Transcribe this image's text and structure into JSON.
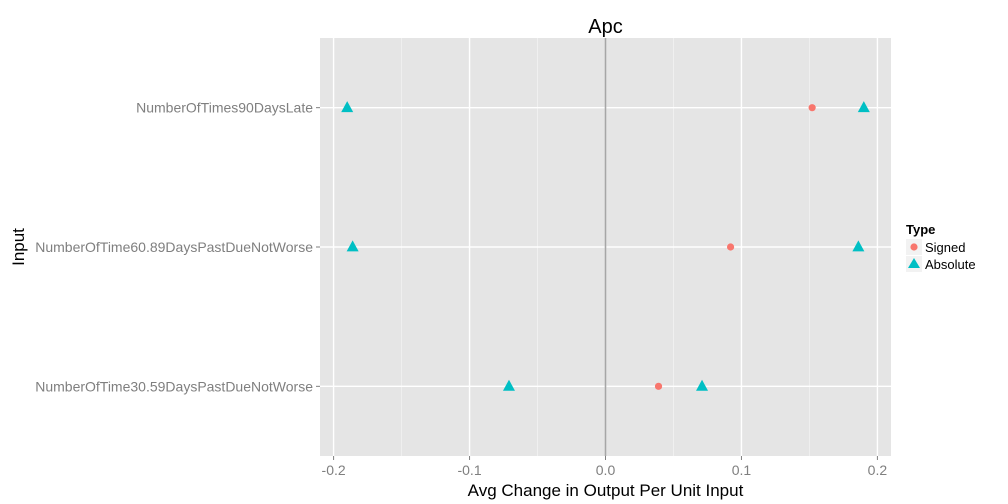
{
  "chart_data": {
    "type": "scatter",
    "title": "Apc",
    "xlabel": "Avg Change in Output Per Unit Input",
    "ylabel": "Input",
    "xlim": [
      -0.21,
      0.21
    ],
    "x_ticks": [
      -0.2,
      -0.1,
      0.0,
      0.1,
      0.2
    ],
    "x_tick_labels": [
      "-0.2",
      "-0.1",
      "0.0",
      "0.1",
      "0.2"
    ],
    "categories": [
      "NumberOfTimes90DaysLate",
      "NumberOfTime60.89DaysPastDueNotWorse",
      "NumberOfTime30.59DaysPastDueNotWorse"
    ],
    "grid": true,
    "vline_x": 0,
    "legend": {
      "title": "Type",
      "placement": "right"
    },
    "series": [
      {
        "name": "Signed",
        "marker": "circle",
        "color": "#F8766D",
        "points": [
          {
            "category": "NumberOfTimes90DaysLate",
            "x": 0.152
          },
          {
            "category": "NumberOfTime60.89DaysPastDueNotWorse",
            "x": 0.092
          },
          {
            "category": "NumberOfTime30.59DaysPastDueNotWorse",
            "x": 0.039
          }
        ]
      },
      {
        "name": "Absolute",
        "marker": "triangle",
        "color": "#00BFC4",
        "points": [
          {
            "category": "NumberOfTimes90DaysLate",
            "x": -0.19
          },
          {
            "category": "NumberOfTimes90DaysLate",
            "x": 0.19
          },
          {
            "category": "NumberOfTime60.89DaysPastDueNotWorse",
            "x": -0.186
          },
          {
            "category": "NumberOfTime60.89DaysPastDueNotWorse",
            "x": 0.186
          },
          {
            "category": "NumberOfTime30.59DaysPastDueNotWorse",
            "x": -0.071
          },
          {
            "category": "NumberOfTime30.59DaysPastDueNotWorse",
            "x": 0.071
          }
        ]
      }
    ]
  }
}
